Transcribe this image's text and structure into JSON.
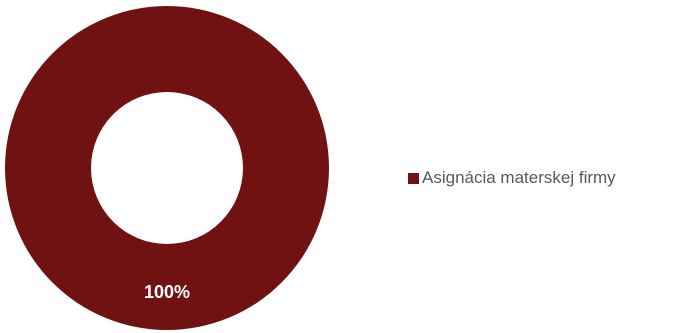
{
  "chart_data": {
    "type": "pie",
    "variant": "donut",
    "title": "",
    "categories": [
      "Asignácia materskej firmy"
    ],
    "series": [
      {
        "values": [
          100
        ],
        "data_labels": [
          "100%"
        ]
      }
    ],
    "colors": [
      "#701212"
    ],
    "legend": {
      "position": "right",
      "entries": [
        "Asignácia materskej firmy"
      ]
    }
  }
}
